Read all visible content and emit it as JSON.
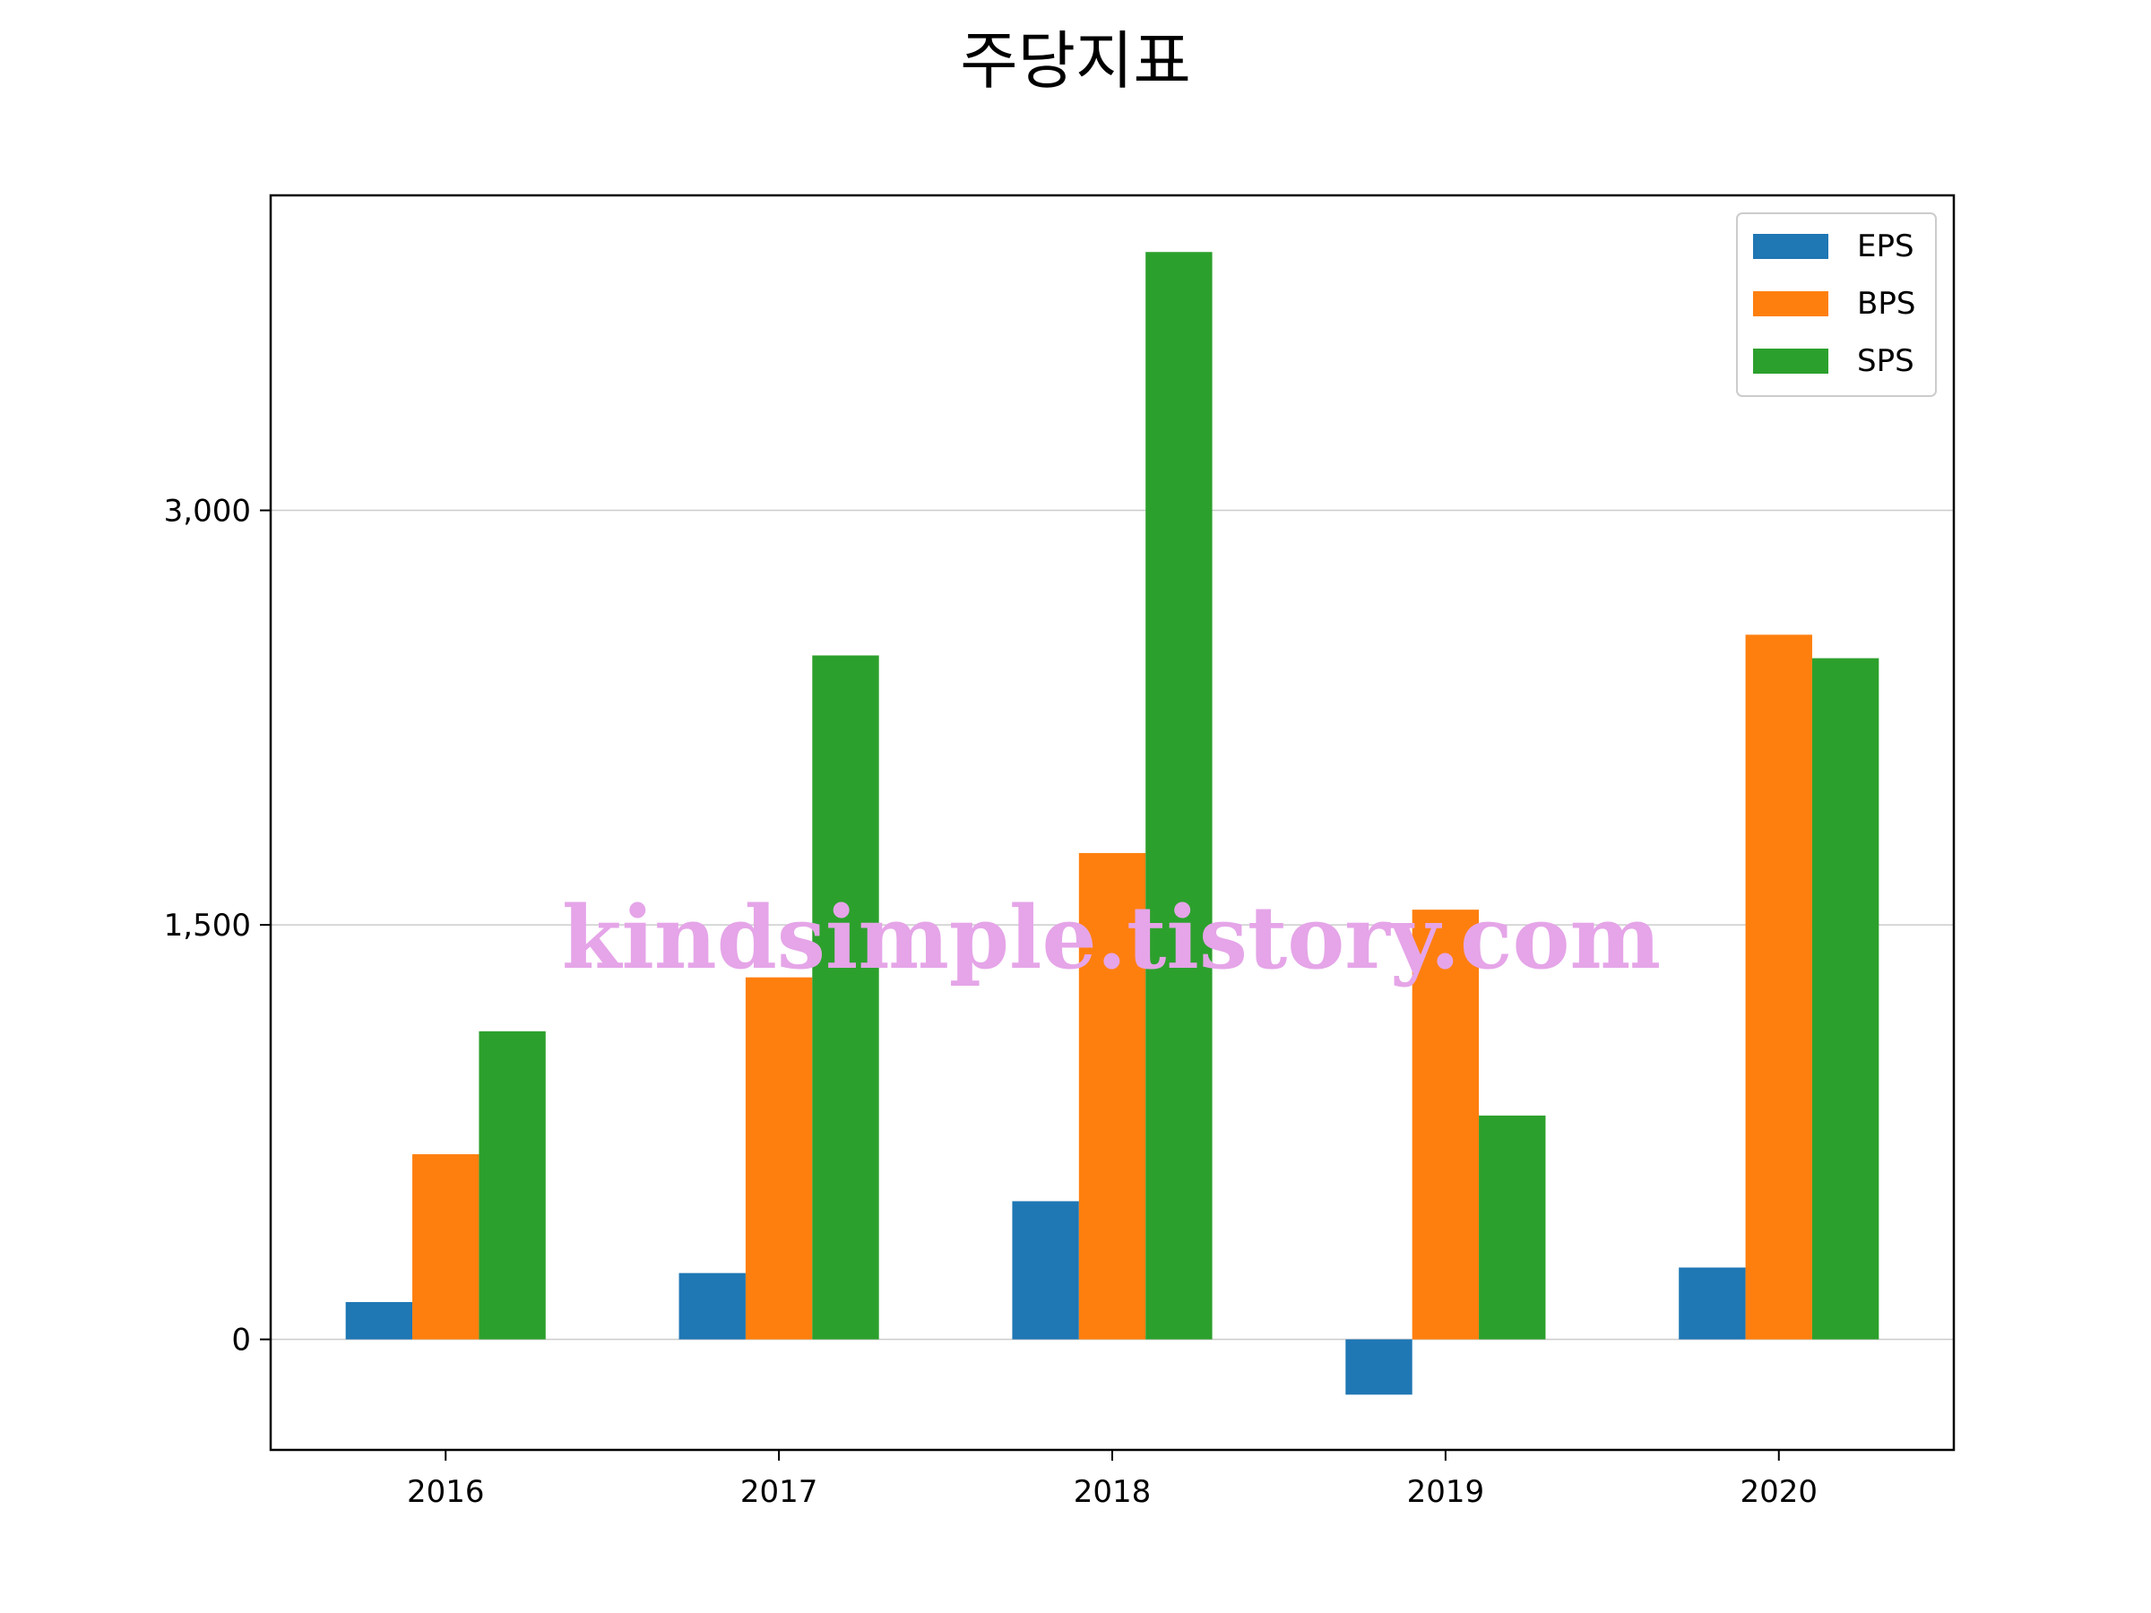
{
  "chart_data": {
    "type": "bar",
    "title": "주당지표",
    "xlabel": "",
    "ylabel": "",
    "categories": [
      "2016",
      "2017",
      "2018",
      "2019",
      "2020"
    ],
    "series": [
      {
        "name": "EPS",
        "color": "#1f77b4",
        "values": [
          135,
          240,
          500,
          -200,
          260
        ]
      },
      {
        "name": "BPS",
        "color": "#ff7f0e",
        "values": [
          670,
          1310,
          1760,
          1555,
          2550
        ]
      },
      {
        "name": "SPS",
        "color": "#2ca02c",
        "values": [
          1115,
          2475,
          3935,
          810,
          2465
        ]
      }
    ],
    "ylim": [
      -400,
      4140
    ],
    "yticks": [
      0,
      1500,
      3000
    ],
    "ytick_labels": [
      "0",
      "1,500",
      "3,000"
    ],
    "grid": {
      "y": true,
      "x": false
    },
    "legend_position": "top-right",
    "watermark": {
      "text": "kindsimple.tistory.com",
      "color": "#e5a5e8"
    }
  }
}
